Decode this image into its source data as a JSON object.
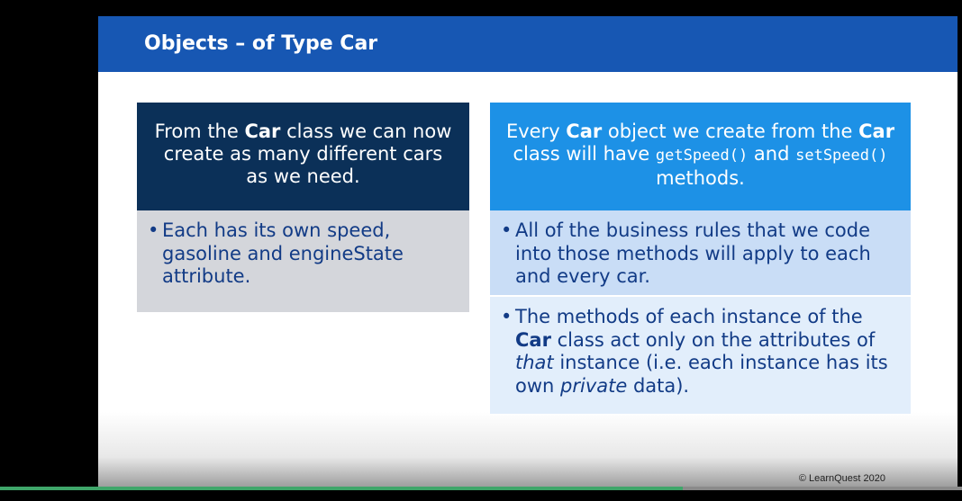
{
  "slide": {
    "title": "Objects – of Type Car",
    "left_panel": {
      "head": {
        "part1": "From the ",
        "bold": "Car",
        "part2": " class we can now create as many different cars as we need."
      },
      "bullet": "Each has its own speed, gasoline and engineState attribute."
    },
    "right_panel": {
      "head": {
        "part1": "Every ",
        "bold1": "Car",
        "part2": " object we create from the ",
        "bold2": "Car",
        "part3": " class will have ",
        "code1": "getSpeed()",
        "part4": " and ",
        "code2": "setSpeed()",
        "part5": " methods."
      },
      "bullet1": "All of the business rules that we code into those methods will apply to each and every car.",
      "bullet2": {
        "part1": "The methods of each instance of the ",
        "bold": "Car",
        "part2": " class act only on the attributes of ",
        "italic1": "that",
        "part3": " instance (i.e. each instance has its own ",
        "italic2": "private",
        "part4": " data)."
      }
    },
    "copyright": "© LearnQuest  2020"
  },
  "player": {
    "progress": 0.71,
    "progress_color": "#3fa66a"
  },
  "colors": {
    "header": "#1757b3",
    "left_head": "#0b3058",
    "right_head": "#1d91e6",
    "body_text": "#123b86"
  }
}
